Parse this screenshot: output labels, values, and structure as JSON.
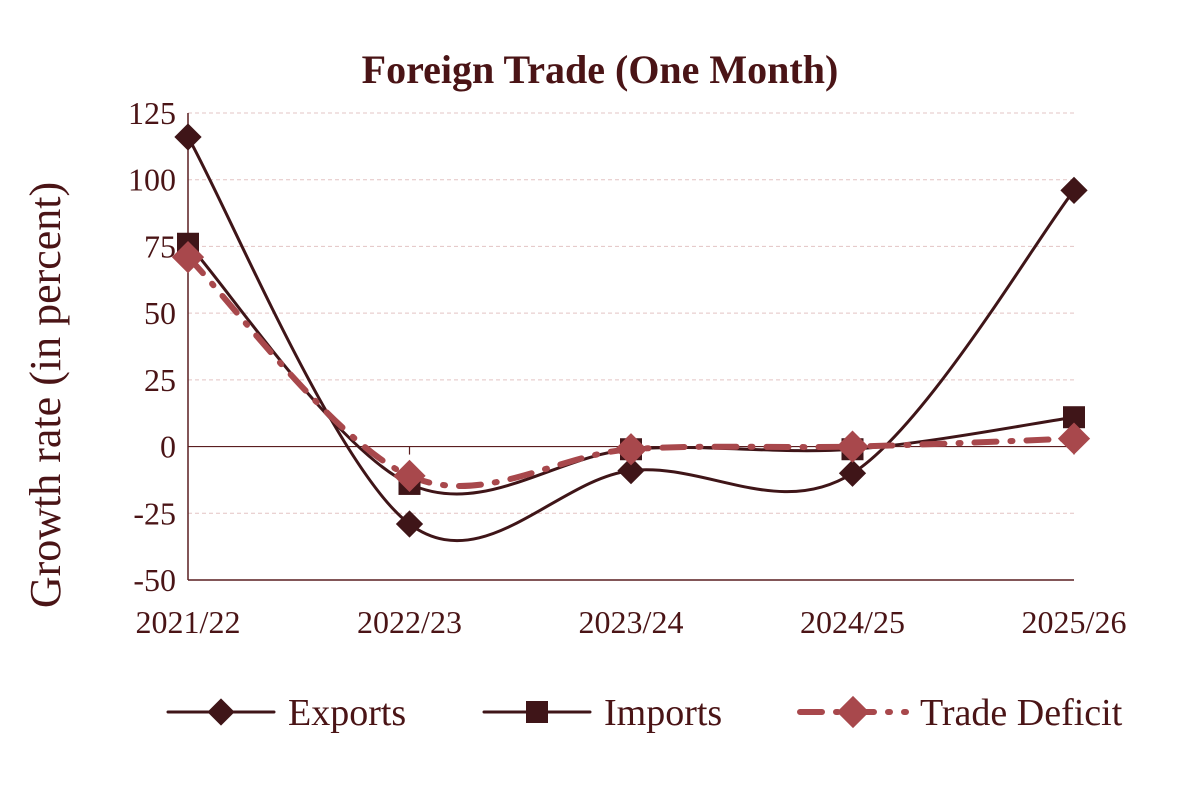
{
  "colors": {
    "text": "#4a1416",
    "axis": "#5a1e20",
    "grid": "#e3c4c4",
    "exports": "#3f1518",
    "imports": "#3f1518",
    "trade_deficit": "#a8484c"
  },
  "chart_data": {
    "type": "line",
    "title": "Foreign Trade (One Month)",
    "xlabel": "",
    "ylabel": "Growth rate (in percent)",
    "categories": [
      "2021/22",
      "2022/23",
      "2023/24",
      "2024/25",
      "2025/26"
    ],
    "ylim": [
      -50,
      125
    ],
    "yticks": [
      "125",
      "100",
      "75",
      "50",
      "25",
      "0",
      "-25",
      "-50"
    ],
    "grid": true,
    "legend_position": "bottom",
    "series": [
      {
        "name": "Exports",
        "values": [
          116,
          -29,
          -9,
          -10,
          96
        ],
        "line_style": "solid",
        "marker": "diamond",
        "color_key": "exports"
      },
      {
        "name": "Imports",
        "values": [
          76,
          -14,
          -1,
          -1,
          11
        ],
        "line_style": "solid",
        "marker": "square",
        "color_key": "imports"
      },
      {
        "name": "Trade Deficit",
        "values": [
          71,
          -11,
          -1,
          0,
          3
        ],
        "line_style": "dash-dot",
        "marker": "diamond",
        "color_key": "trade_deficit"
      }
    ]
  }
}
